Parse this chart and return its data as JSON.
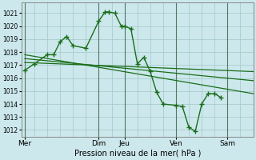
{
  "xlabel": "Pression niveau de la mer( hPa )",
  "bg_color": "#cce8ec",
  "grid_color": "#aacccc",
  "line_color": "#1a6e1a",
  "vline_color": "#557766",
  "ylim": [
    1011.5,
    1021.8
  ],
  "yticks": [
    1012,
    1013,
    1014,
    1015,
    1016,
    1017,
    1018,
    1019,
    1020,
    1021
  ],
  "xlim": [
    0,
    36
  ],
  "xtick_labels": [
    "Mer",
    "Dim",
    "Jeu",
    "Ven",
    "Sam"
  ],
  "xtick_positions": [
    0.5,
    12,
    16,
    24,
    32
  ],
  "vline_positions": [
    0.5,
    12,
    16,
    24,
    32
  ],
  "series1_x": [
    0.5,
    2,
    4,
    5,
    6,
    7,
    8,
    10,
    12,
    13,
    13.5,
    14.5,
    15.5,
    16,
    17,
    18,
    19,
    20,
    21,
    22,
    24,
    25,
    26,
    27,
    28,
    29,
    30,
    31
  ],
  "series1_y": [
    1016.6,
    1017.1,
    1017.8,
    1017.8,
    1018.8,
    1019.2,
    1018.5,
    1018.3,
    1020.4,
    1021.1,
    1021.1,
    1021.0,
    1020.0,
    1020.0,
    1019.8,
    1017.1,
    1017.6,
    1016.5,
    1014.9,
    1014.0,
    1013.9,
    1013.8,
    1012.2,
    1011.9,
    1014.0,
    1014.8,
    1014.8,
    1014.5
  ],
  "trend1_x": [
    0.5,
    36
  ],
  "trend1_y": [
    1017.8,
    1014.8
  ],
  "trend2_x": [
    0.5,
    36
  ],
  "trend2_y": [
    1017.5,
    1015.8
  ],
  "trend3_x": [
    0.5,
    36
  ],
  "trend3_y": [
    1017.2,
    1016.5
  ]
}
